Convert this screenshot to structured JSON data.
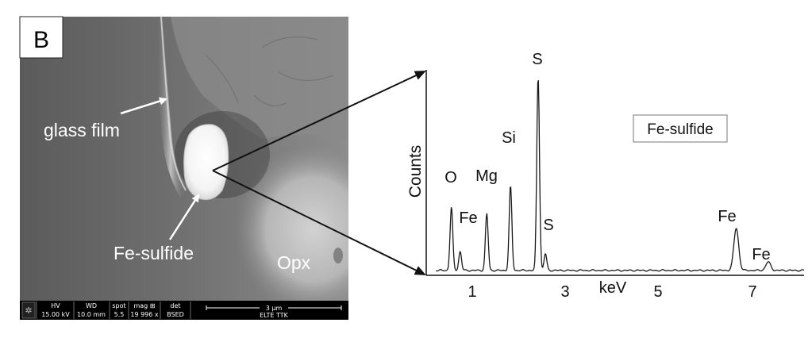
{
  "panel_label": "B",
  "sem": {
    "labels": {
      "glass_film": "glass film",
      "fe_sulfide": "Fe-sulfide",
      "opx": "Opx"
    },
    "databar": {
      "headers": [
        "HV",
        "WD",
        "spot",
        "mag ⊞",
        "det"
      ],
      "values": [
        "15.00 kV",
        "10.0 mm",
        "5.5",
        "19 996 x",
        "BSED"
      ],
      "scale_label": "3 µm",
      "institution": "ELTE TTK"
    }
  },
  "chart_data": {
    "type": "line",
    "ylabel": "Counts",
    "xlabel": "keV",
    "tick_labels": [
      "1",
      "3",
      "5",
      "7"
    ],
    "legend": "Fe-sulfide",
    "peak_labels": [
      "O",
      "Fe",
      "Mg",
      "Si",
      "S",
      "S",
      "Fe",
      "Fe"
    ],
    "peaks": [
      {
        "element": "O",
        "kev": 0.52,
        "relative_height": 0.3
      },
      {
        "element": "Fe",
        "kev": 0.7,
        "relative_height": 0.09
      },
      {
        "element": "Mg",
        "kev": 1.25,
        "relative_height": 0.27
      },
      {
        "element": "Si",
        "kev": 1.74,
        "relative_height": 0.4
      },
      {
        "element": "S",
        "kev": 2.31,
        "relative_height": 0.92
      },
      {
        "element": "S",
        "kev": 2.46,
        "relative_height": 0.08
      },
      {
        "element": "Fe",
        "kev": 6.4,
        "relative_height": 0.2
      },
      {
        "element": "Fe",
        "kev": 7.06,
        "relative_height": 0.04
      }
    ]
  },
  "colors": {
    "line": "#1a1a1a",
    "databar_bg": "#000000",
    "databar_text": "#ffffff"
  }
}
